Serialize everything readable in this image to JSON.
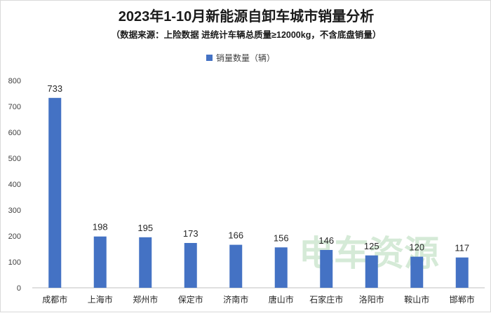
{
  "header": {
    "title": "2023年1-10月新能源自卸车城市销量分析",
    "subtitle": "（数据来源：上险数据 进统计车辆总质量≥12000kg，不含底盘销量）"
  },
  "watermark": {
    "text": "电车资源"
  },
  "colors": {
    "bar": "#4472c4",
    "axis": "#bfbfbf",
    "watermark": "#3fa14a"
  },
  "chart_data": {
    "type": "bar",
    "title": "2023年1-10月新能源自卸车城市销量分析",
    "subtitle": "（数据来源：上险数据 进统计车辆总质量≥12000kg，不含底盘销量）",
    "categories": [
      "成都市",
      "上海市",
      "郑州市",
      "保定市",
      "济南市",
      "唐山市",
      "石家庄市",
      "洛阳市",
      "鞍山市",
      "邯郸市"
    ],
    "series": [
      {
        "name": "销量数量（辆）",
        "values": [
          733,
          198,
          195,
          173,
          166,
          156,
          146,
          125,
          120,
          117
        ]
      }
    ],
    "yticks": [
      0,
      100,
      200,
      300,
      400,
      500,
      600,
      700,
      800
    ],
    "ylim": [
      0,
      800
    ],
    "xlabel": "",
    "ylabel": "",
    "legend": "top-center",
    "grid": false,
    "data_labels": true
  }
}
